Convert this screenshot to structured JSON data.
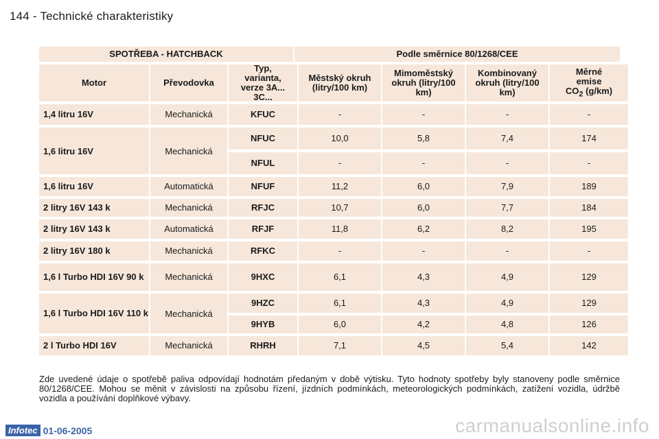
{
  "page": {
    "number": "144",
    "separator": "-",
    "section_title": "Technické charakteristiky"
  },
  "table": {
    "group_header_left": "SPOTŘEBA - HATCHBACK",
    "group_header_right": "Podle směrnice 80/1268/CEE",
    "columns": {
      "motor": "Motor",
      "prevodovka": "Převodovka",
      "typ": "Typ, varianta, verze 3A... 3C...",
      "mestsky": "Městský okruh (litry/100 km)",
      "mimomestsky": "Mimoměstský okruh (litry/100 km)",
      "kombinovany": "Kombinovaný okruh (litry/100 km)",
      "emise_prefix": "Měrné emise",
      "emise_co": "CO",
      "emise_sub": "2",
      "emise_unit": " (g/km)"
    },
    "rows": [
      {
        "motor": "1,4 litru 16V",
        "gear": "Mechanická",
        "type": "KFUC",
        "city": "-",
        "extra": "-",
        "comb": "-",
        "co2": "-"
      },
      {
        "motor": "1,6 litru 16V",
        "gear": "Mechanická",
        "variants": [
          {
            "type": "NFUC",
            "city": "10,0",
            "extra": "5,8",
            "comb": "7,4",
            "co2": "174"
          },
          {
            "type": "NFUL",
            "city": "-",
            "extra": "-",
            "comb": "-",
            "co2": "-"
          }
        ]
      },
      {
        "motor": "1,6 litru 16V",
        "gear": "Automatická",
        "type": "NFUF",
        "city": "11,2",
        "extra": "6,0",
        "comb": "7,9",
        "co2": "189"
      },
      {
        "motor": "2 litry 16V 143 k",
        "gear": "Mechanická",
        "type": "RFJC",
        "city": "10,7",
        "extra": "6,0",
        "comb": "7,7",
        "co2": "184"
      },
      {
        "motor": "2 litry 16V 143 k",
        "gear": "Automatická",
        "type": "RFJF",
        "city": "11,8",
        "extra": "6,2",
        "comb": "8,2",
        "co2": "195"
      },
      {
        "motor": "2 litry 16V 180 k",
        "gear": "Mechanická",
        "type": "RFKC",
        "city": "-",
        "extra": "-",
        "comb": "-",
        "co2": "-"
      },
      {
        "motor": "1,6 l Turbo HDI 16V 90 k",
        "gear": "Mechanická",
        "type": "9HXC",
        "city": "6,1",
        "extra": "4,3",
        "comb": "4,9",
        "co2": "129"
      },
      {
        "motor": "1,6 l Turbo HDI 16V 110 k",
        "gear": "Mechanická",
        "variants": [
          {
            "type": "9HZC",
            "city": "6,1",
            "extra": "4,3",
            "comb": "4,9",
            "co2": "129"
          },
          {
            "type": "9HYB",
            "city": "6,0",
            "extra": "4,2",
            "comb": "4,8",
            "co2": "126"
          }
        ]
      },
      {
        "motor": "2 l Turbo HDI 16V",
        "gear": "Mechanická",
        "type": "RHRH",
        "city": "7,1",
        "extra": "4,5",
        "comb": "5,4",
        "co2": "142"
      }
    ]
  },
  "note": "Zde uvedené údaje o spotřebě paliva odpovídají hodnotám předaným v době výtisku. Tyto hodnoty spotřeby byly stanoveny podle směrnice 80/1268/CEE. Mohou se měnit v závislosti na způsobu řízení, jízdních podmínkách, meteorologických podmínkách, zatížení vozidla, údržbě vozidla a používání doplňkové výbavy.",
  "footer": {
    "logo": "Infotec",
    "date": "01-06-2005"
  },
  "watermark": "carmanualsonline.info",
  "colors": {
    "cell_bg": "#f6e7da",
    "footer_blue": "#3b63a8"
  }
}
